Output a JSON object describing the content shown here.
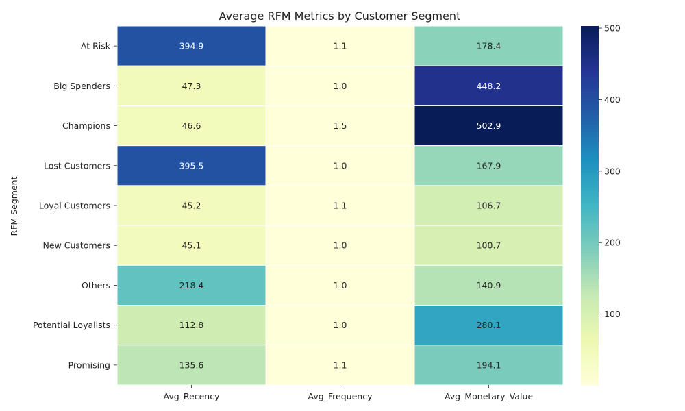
{
  "chart_data": {
    "type": "heatmap",
    "title": "Average RFM Metrics by Customer Segment",
    "ylabel": "RFM Segment",
    "xlabel": "",
    "columns": [
      "Avg_Recency",
      "Avg_Frequency",
      "Avg_Monetary_Value"
    ],
    "rows": [
      "At Risk",
      "Big Spenders",
      "Champions",
      "Lost Customers",
      "Loyal Customers",
      "New Customers",
      "Others",
      "Potential Loyalists",
      "Promising"
    ],
    "values": [
      [
        394.9,
        1.1,
        178.4
      ],
      [
        47.3,
        1.0,
        448.2
      ],
      [
        46.6,
        1.5,
        502.9
      ],
      [
        395.5,
        1.0,
        167.9
      ],
      [
        45.2,
        1.1,
        106.7
      ],
      [
        45.1,
        1.0,
        100.7
      ],
      [
        218.4,
        1.0,
        140.9
      ],
      [
        112.8,
        1.0,
        280.1
      ],
      [
        135.6,
        1.1,
        194.1
      ]
    ],
    "value_labels": [
      [
        "394.9",
        "1.1",
        "178.4"
      ],
      [
        "47.3",
        "1.0",
        "448.2"
      ],
      [
        "46.6",
        "1.5",
        "502.9"
      ],
      [
        "395.5",
        "1.0",
        "167.9"
      ],
      [
        "45.2",
        "1.1",
        "106.7"
      ],
      [
        "45.1",
        "1.0",
        "100.7"
      ],
      [
        "218.4",
        "1.0",
        "140.9"
      ],
      [
        "112.8",
        "1.0",
        "280.1"
      ],
      [
        "135.6",
        "1.1",
        "194.1"
      ]
    ],
    "colormap": "YlGnBu",
    "colormap_stops": [
      "#ffffd9",
      "#edf8b1",
      "#c7e9b4",
      "#7fcdbb",
      "#41b6c4",
      "#1d91c0",
      "#225ea8",
      "#253494",
      "#081d58"
    ],
    "color_range": [
      1.0,
      502.9
    ],
    "colorbar_ticks": [
      100,
      200,
      300,
      400,
      500
    ],
    "colorbar_tick_labels": [
      "100",
      "200",
      "300",
      "400",
      "500"
    ]
  }
}
